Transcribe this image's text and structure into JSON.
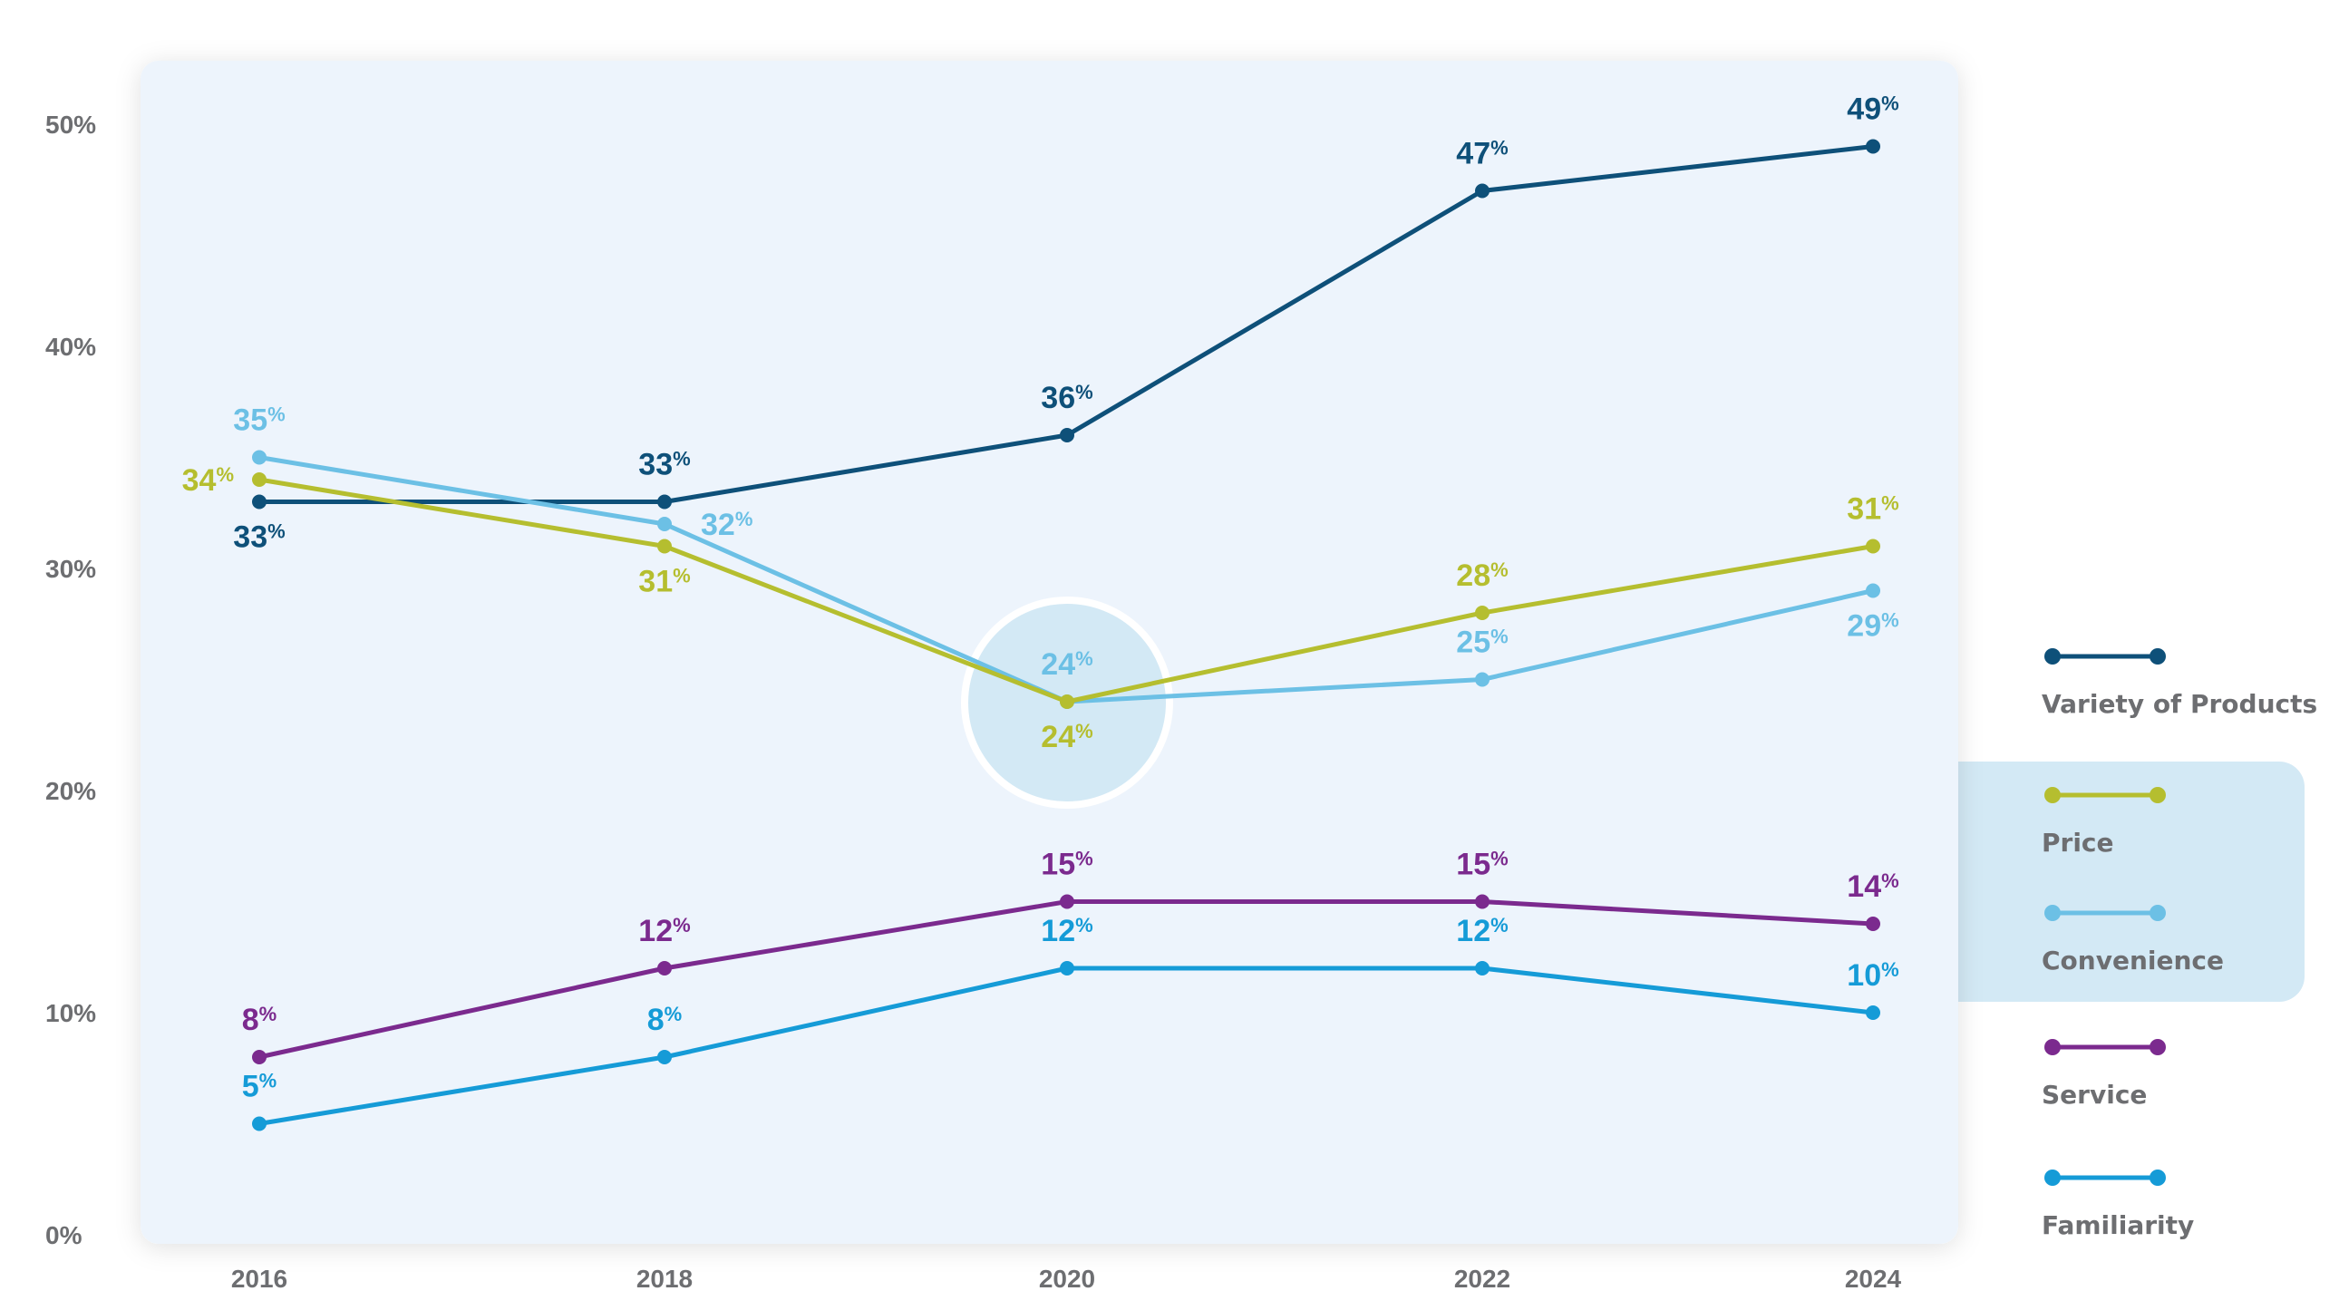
{
  "chart_data": {
    "type": "line",
    "x": [
      "2016",
      "2018",
      "2020",
      "2022",
      "2024"
    ],
    "ylim": [
      0,
      50
    ],
    "yticks": [
      "0%",
      "10%",
      "20%",
      "30%",
      "40%",
      "50%"
    ],
    "grid": false,
    "legend_position": "right",
    "highlight": {
      "x": "2020",
      "series": [
        "Price",
        "Convenience"
      ]
    },
    "series": [
      {
        "name": "Variety of Products",
        "color": "#0e5079",
        "values": [
          33,
          33,
          36,
          47,
          49
        ]
      },
      {
        "name": "Price",
        "color": "#b5be2f",
        "values": [
          34,
          31,
          24,
          28,
          31
        ]
      },
      {
        "name": "Convenience",
        "color": "#6cc0e5",
        "values": [
          35,
          32,
          24,
          25,
          29
        ]
      },
      {
        "name": "Service",
        "color": "#7b2a8e",
        "values": [
          8,
          12,
          15,
          15,
          14
        ]
      },
      {
        "name": "Familiarity",
        "color": "#159bd7",
        "values": [
          5,
          8,
          12,
          12,
          10
        ]
      }
    ],
    "value_suffix": "%"
  }
}
